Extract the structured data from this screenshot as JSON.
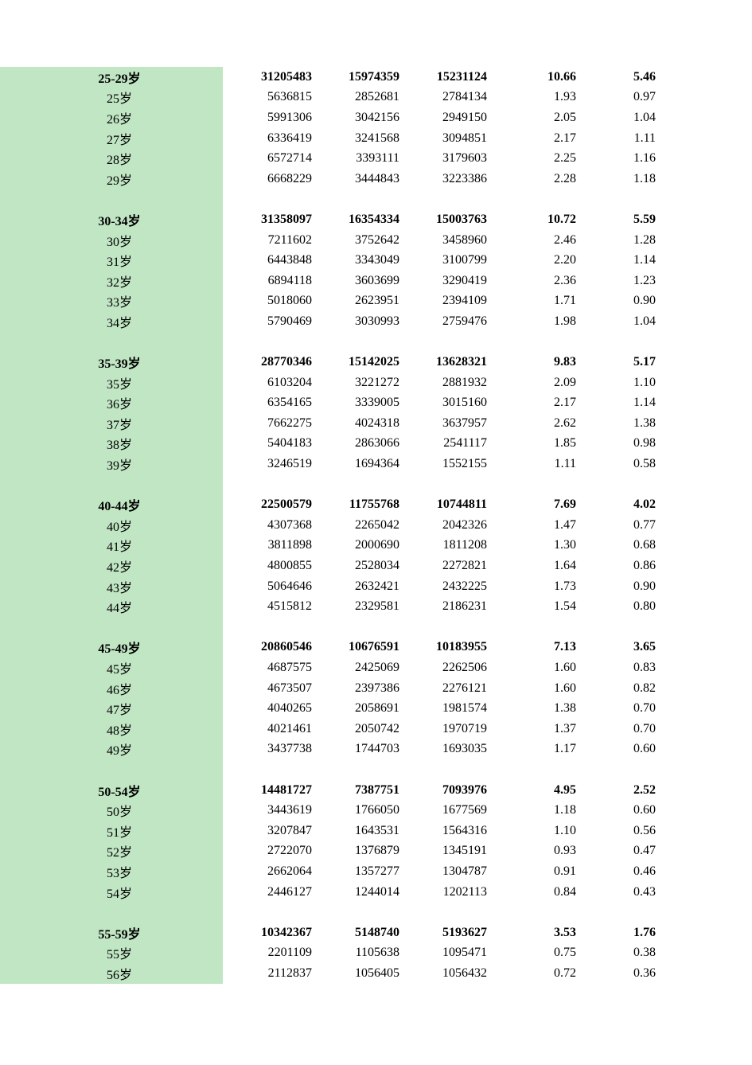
{
  "table": {
    "col0_bg": "#c0e6c4",
    "text_color": "#000000",
    "font_size": 16,
    "columns": [
      "age",
      "total",
      "male",
      "female",
      "pct1",
      "pct2"
    ],
    "groups": [
      {
        "header": {
          "age": "25-29岁",
          "total": "31205483",
          "male": "15974359",
          "female": "15231124",
          "pct1": "10.66",
          "pct2": "5.46"
        },
        "rows": [
          {
            "age": "25岁",
            "total": "5636815",
            "male": "2852681",
            "female": "2784134",
            "pct1": "1.93",
            "pct2": "0.97"
          },
          {
            "age": "26岁",
            "total": "5991306",
            "male": "3042156",
            "female": "2949150",
            "pct1": "2.05",
            "pct2": "1.04"
          },
          {
            "age": "27岁",
            "total": "6336419",
            "male": "3241568",
            "female": "3094851",
            "pct1": "2.17",
            "pct2": "1.11"
          },
          {
            "age": "28岁",
            "total": "6572714",
            "male": "3393111",
            "female": "3179603",
            "pct1": "2.25",
            "pct2": "1.16"
          },
          {
            "age": "29岁",
            "total": "6668229",
            "male": "3444843",
            "female": "3223386",
            "pct1": "2.28",
            "pct2": "1.18"
          }
        ]
      },
      {
        "header": {
          "age": "30-34岁",
          "total": "31358097",
          "male": "16354334",
          "female": "15003763",
          "pct1": "10.72",
          "pct2": "5.59"
        },
        "rows": [
          {
            "age": "30岁",
            "total": "7211602",
            "male": "3752642",
            "female": "3458960",
            "pct1": "2.46",
            "pct2": "1.28"
          },
          {
            "age": "31岁",
            "total": "6443848",
            "male": "3343049",
            "female": "3100799",
            "pct1": "2.20",
            "pct2": "1.14"
          },
          {
            "age": "32岁",
            "total": "6894118",
            "male": "3603699",
            "female": "3290419",
            "pct1": "2.36",
            "pct2": "1.23"
          },
          {
            "age": "33岁",
            "total": "5018060",
            "male": "2623951",
            "female": "2394109",
            "pct1": "1.71",
            "pct2": "0.90"
          },
          {
            "age": "34岁",
            "total": "5790469",
            "male": "3030993",
            "female": "2759476",
            "pct1": "1.98",
            "pct2": "1.04"
          }
        ]
      },
      {
        "header": {
          "age": "35-39岁",
          "total": "28770346",
          "male": "15142025",
          "female": "13628321",
          "pct1": "9.83",
          "pct2": "5.17"
        },
        "rows": [
          {
            "age": "35岁",
            "total": "6103204",
            "male": "3221272",
            "female": "2881932",
            "pct1": "2.09",
            "pct2": "1.10"
          },
          {
            "age": "36岁",
            "total": "6354165",
            "male": "3339005",
            "female": "3015160",
            "pct1": "2.17",
            "pct2": "1.14"
          },
          {
            "age": "37岁",
            "total": "7662275",
            "male": "4024318",
            "female": "3637957",
            "pct1": "2.62",
            "pct2": "1.38"
          },
          {
            "age": "38岁",
            "total": "5404183",
            "male": "2863066",
            "female": "2541117",
            "pct1": "1.85",
            "pct2": "0.98"
          },
          {
            "age": "39岁",
            "total": "3246519",
            "male": "1694364",
            "female": "1552155",
            "pct1": "1.11",
            "pct2": "0.58"
          }
        ]
      },
      {
        "header": {
          "age": "40-44岁",
          "total": "22500579",
          "male": "11755768",
          "female": "10744811",
          "pct1": "7.69",
          "pct2": "4.02"
        },
        "rows": [
          {
            "age": "40岁",
            "total": "4307368",
            "male": "2265042",
            "female": "2042326",
            "pct1": "1.47",
            "pct2": "0.77"
          },
          {
            "age": "41岁",
            "total": "3811898",
            "male": "2000690",
            "female": "1811208",
            "pct1": "1.30",
            "pct2": "0.68"
          },
          {
            "age": "42岁",
            "total": "4800855",
            "male": "2528034",
            "female": "2272821",
            "pct1": "1.64",
            "pct2": "0.86"
          },
          {
            "age": "43岁",
            "total": "5064646",
            "male": "2632421",
            "female": "2432225",
            "pct1": "1.73",
            "pct2": "0.90"
          },
          {
            "age": "44岁",
            "total": "4515812",
            "male": "2329581",
            "female": "2186231",
            "pct1": "1.54",
            "pct2": "0.80"
          }
        ]
      },
      {
        "header": {
          "age": "45-49岁",
          "total": "20860546",
          "male": "10676591",
          "female": "10183955",
          "pct1": "7.13",
          "pct2": "3.65"
        },
        "rows": [
          {
            "age": "45岁",
            "total": "4687575",
            "male": "2425069",
            "female": "2262506",
            "pct1": "1.60",
            "pct2": "0.83"
          },
          {
            "age": "46岁",
            "total": "4673507",
            "male": "2397386",
            "female": "2276121",
            "pct1": "1.60",
            "pct2": "0.82"
          },
          {
            "age": "47岁",
            "total": "4040265",
            "male": "2058691",
            "female": "1981574",
            "pct1": "1.38",
            "pct2": "0.70"
          },
          {
            "age": "48岁",
            "total": "4021461",
            "male": "2050742",
            "female": "1970719",
            "pct1": "1.37",
            "pct2": "0.70"
          },
          {
            "age": "49岁",
            "total": "3437738",
            "male": "1744703",
            "female": "1693035",
            "pct1": "1.17",
            "pct2": "0.60"
          }
        ]
      },
      {
        "header": {
          "age": "50-54岁",
          "total": "14481727",
          "male": "7387751",
          "female": "7093976",
          "pct1": "4.95",
          "pct2": "2.52"
        },
        "rows": [
          {
            "age": "50岁",
            "total": "3443619",
            "male": "1766050",
            "female": "1677569",
            "pct1": "1.18",
            "pct2": "0.60"
          },
          {
            "age": "51岁",
            "total": "3207847",
            "male": "1643531",
            "female": "1564316",
            "pct1": "1.10",
            "pct2": "0.56"
          },
          {
            "age": "52岁",
            "total": "2722070",
            "male": "1376879",
            "female": "1345191",
            "pct1": "0.93",
            "pct2": "0.47"
          },
          {
            "age": "53岁",
            "total": "2662064",
            "male": "1357277",
            "female": "1304787",
            "pct1": "0.91",
            "pct2": "0.46"
          },
          {
            "age": "54岁",
            "total": "2446127",
            "male": "1244014",
            "female": "1202113",
            "pct1": "0.84",
            "pct2": "0.43"
          }
        ]
      },
      {
        "header": {
          "age": "55-59岁",
          "total": "10342367",
          "male": "5148740",
          "female": "5193627",
          "pct1": "3.53",
          "pct2": "1.76"
        },
        "rows": [
          {
            "age": "55岁",
            "total": "2201109",
            "male": "1105638",
            "female": "1095471",
            "pct1": "0.75",
            "pct2": "0.38"
          },
          {
            "age": "56岁",
            "total": "2112837",
            "male": "1056405",
            "female": "1056432",
            "pct1": "0.72",
            "pct2": "0.36"
          }
        ]
      }
    ]
  }
}
